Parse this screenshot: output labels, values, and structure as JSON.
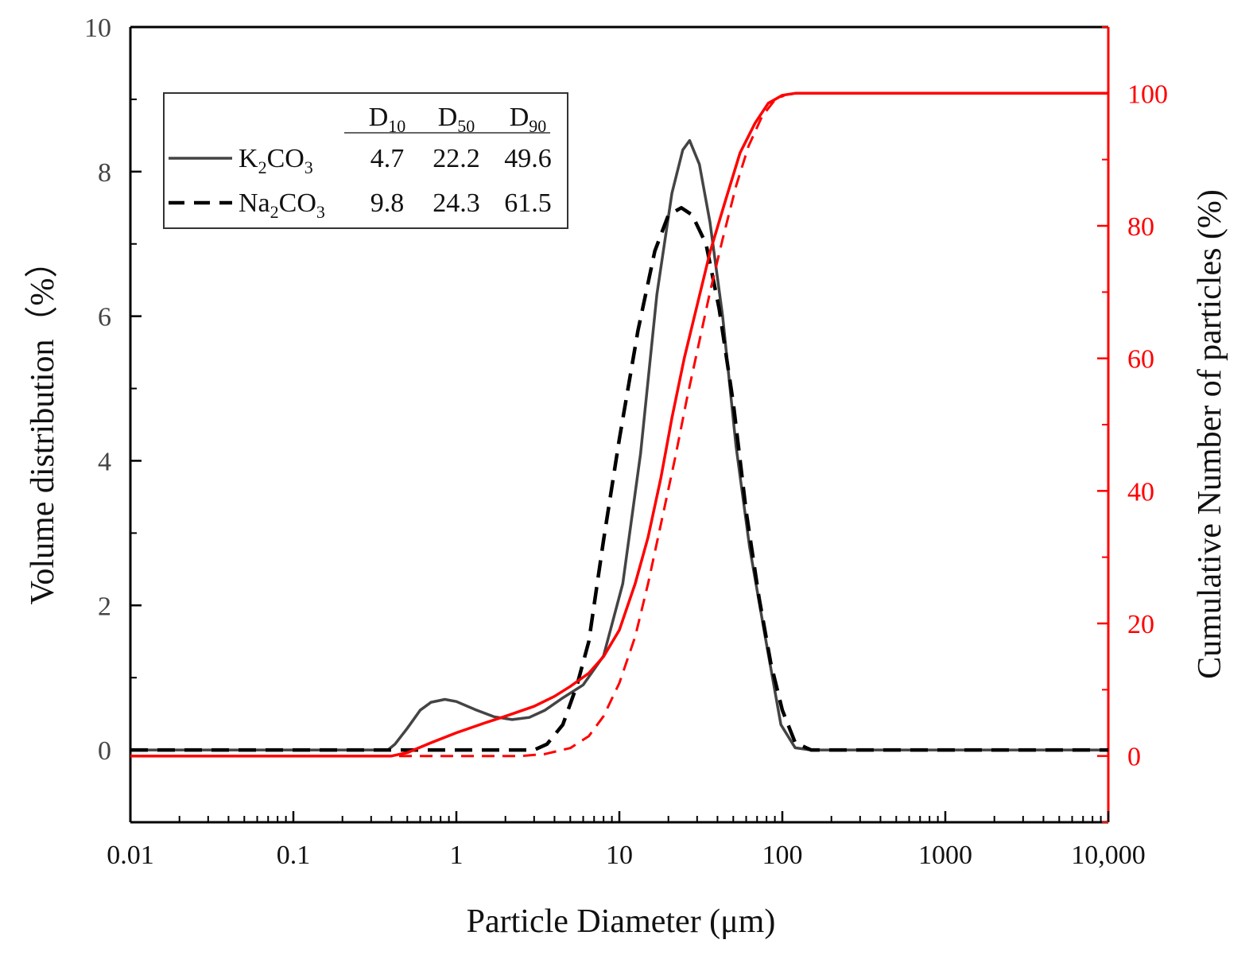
{
  "chart_data": {
    "type": "line",
    "xlabel": "Particle Diameter (μm)",
    "ylabel_left": "Volume distribution（%）",
    "ylabel_right": "Cumulative Number of particles (%)",
    "x_scale": "log",
    "xlim": [
      0.01,
      10000
    ],
    "ylim_left": [
      -1,
      10
    ],
    "ylim_right": [
      -10,
      110
    ],
    "x_ticks": [
      {
        "value": 0.01,
        "label": "0.01"
      },
      {
        "value": 0.1,
        "label": "0.1"
      },
      {
        "value": 1,
        "label": "1"
      },
      {
        "value": 10,
        "label": "10"
      },
      {
        "value": 100,
        "label": "100"
      },
      {
        "value": 1000,
        "label": "1000"
      },
      {
        "value": 10000,
        "label": "10,000"
      }
    ],
    "y_ticks_left": [
      {
        "value": 0,
        "label": "0"
      },
      {
        "value": 2,
        "label": "2"
      },
      {
        "value": 4,
        "label": "4"
      },
      {
        "value": 6,
        "label": "6"
      },
      {
        "value": 8,
        "label": "8"
      },
      {
        "value": 10,
        "label": "10"
      }
    ],
    "y_ticks_right": [
      {
        "value": 0,
        "label": "0"
      },
      {
        "value": 20,
        "label": "20"
      },
      {
        "value": 40,
        "label": "40"
      },
      {
        "value": 60,
        "label": "60"
      },
      {
        "value": 80,
        "label": "80"
      },
      {
        "value": 100,
        "label": "100"
      }
    ],
    "legend": {
      "placement": "top-left",
      "headers": [
        {
          "main": "D",
          "sub": "10"
        },
        {
          "main": "D",
          "sub": "50"
        },
        {
          "main": "D",
          "sub": "90"
        }
      ],
      "rows": [
        {
          "name_parts": [
            "K",
            "2",
            "CO",
            "3"
          ],
          "style": "solid",
          "values": [
            "4.7",
            "22.2",
            "49.6"
          ]
        },
        {
          "name_parts": [
            "Na",
            "2",
            "CO",
            "3"
          ],
          "style": "dashed",
          "values": [
            "9.8",
            "24.3",
            "61.5"
          ]
        }
      ]
    },
    "series": [
      {
        "name": "K2CO3 volume distribution",
        "axis": "left",
        "color": "#444444",
        "style": "solid",
        "x": [
          0.01,
          0.38,
          0.42,
          0.5,
          0.6,
          0.7,
          0.85,
          1.0,
          1.3,
          1.7,
          2.2,
          2.8,
          3.5,
          4.5,
          6.0,
          8.0,
          10.5,
          13.5,
          17.0,
          21.0,
          24.5,
          27.0,
          31.0,
          36.0,
          43.0,
          52.0,
          63.0,
          78.0,
          98.0,
          120.0,
          150.0,
          10000
        ],
        "y": [
          0,
          0,
          0.08,
          0.3,
          0.55,
          0.66,
          0.7,
          0.67,
          0.56,
          0.46,
          0.42,
          0.45,
          0.55,
          0.72,
          0.9,
          1.3,
          2.3,
          4.1,
          6.3,
          7.7,
          8.3,
          8.43,
          8.1,
          7.3,
          6.0,
          4.2,
          2.8,
          1.6,
          0.35,
          0.03,
          0,
          0
        ]
      },
      {
        "name": "Na2CO3 volume distribution",
        "axis": "left",
        "color": "#000000",
        "style": "dashed",
        "x": [
          0.01,
          3.0,
          3.6,
          4.5,
          5.5,
          6.5,
          8.0,
          10.0,
          13.0,
          16.5,
          20.0,
          24.0,
          28.0,
          34.0,
          41.0,
          50.0,
          60.0,
          72.0,
          85.0,
          100.0,
          120.0,
          150.0,
          10000
        ],
        "y": [
          0,
          0,
          0.08,
          0.35,
          0.9,
          1.5,
          2.9,
          4.3,
          5.8,
          6.9,
          7.4,
          7.5,
          7.4,
          7.0,
          6.1,
          4.8,
          3.3,
          2.1,
          1.2,
          0.55,
          0.1,
          0,
          0
        ]
      },
      {
        "name": "K2CO3 cumulative number",
        "axis": "right",
        "color": "#ff0000",
        "style": "solid",
        "x": [
          0.01,
          0.4,
          0.5,
          0.7,
          1.0,
          1.5,
          2.0,
          3.0,
          4.0,
          5.0,
          6.5,
          8.0,
          10.0,
          12.5,
          15.0,
          18.0,
          21.0,
          25.0,
          30.0,
          36.0,
          45.0,
          55.0,
          68.0,
          82.0,
          100.0,
          120.0,
          10000
        ],
        "y": [
          0,
          0,
          0.5,
          2.0,
          3.5,
          5.0,
          6.0,
          7.5,
          9.0,
          10.5,
          12.5,
          15.0,
          19.0,
          26.0,
          33.0,
          42.0,
          51.0,
          60.0,
          68.0,
          76.0,
          84.0,
          91.0,
          95.5,
          98.5,
          99.7,
          100,
          100
        ]
      },
      {
        "name": "Na2CO3 cumulative number",
        "axis": "right",
        "color": "#ff0000",
        "style": "dashed",
        "x": [
          0.01,
          0.6,
          2.5,
          3.5,
          5.0,
          6.5,
          8.0,
          10.0,
          12.5,
          15.0,
          18.0,
          22.0,
          26.0,
          30.0,
          36.0,
          43.0,
          52.0,
          62.0,
          75.0,
          90.0,
          105.0,
          125.0,
          10000
        ],
        "y": [
          0,
          0,
          0,
          0.3,
          1.2,
          3.0,
          6.0,
          11.0,
          18.0,
          26.0,
          35.0,
          45.0,
          54.0,
          61.0,
          70.0,
          78.0,
          86.0,
          92.0,
          96.5,
          99.0,
          99.8,
          100,
          100
        ]
      }
    ]
  }
}
